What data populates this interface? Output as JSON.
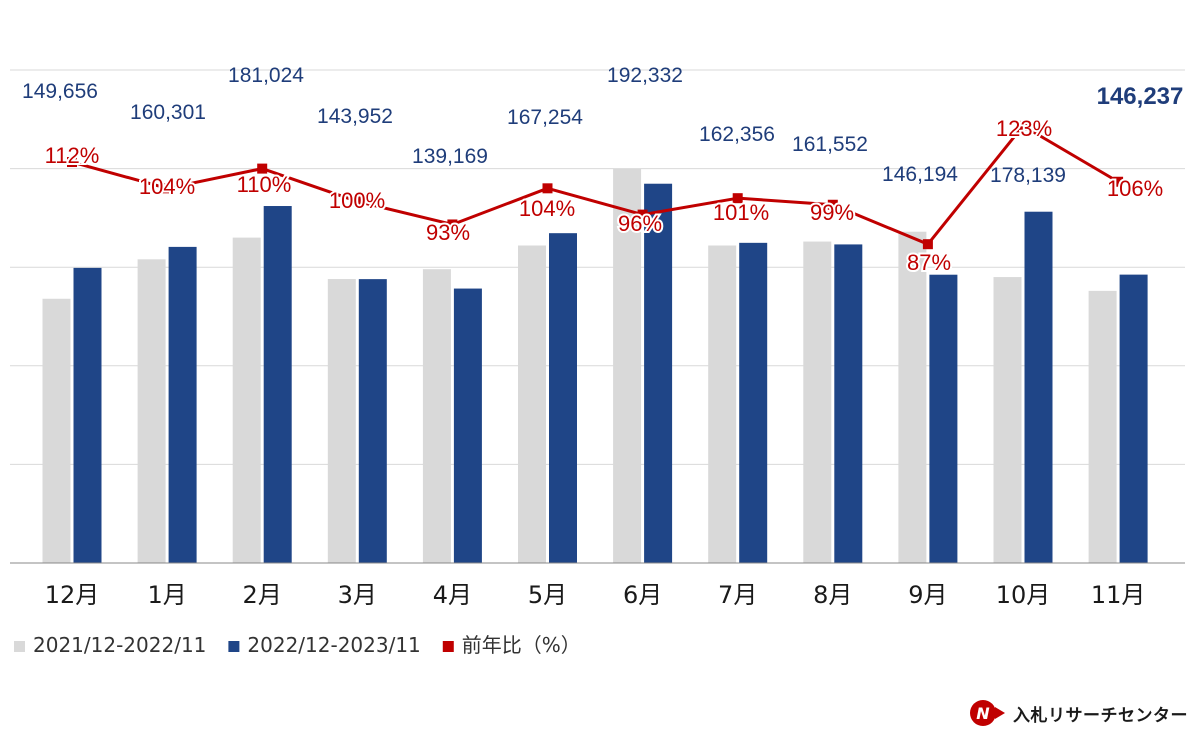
{
  "chart_data": {
    "type": "bar",
    "categories": [
      "12月",
      "1月",
      "2月",
      "3月",
      "4月",
      "5月",
      "6月",
      "7月",
      "8月",
      "9月",
      "10月",
      "11月"
    ],
    "series": [
      {
        "name": "2021/12-2022/11",
        "color": "#d9d9d9",
        "values": [
          134000,
          154000,
          165000,
          144000,
          149000,
          161000,
          200000,
          161000,
          163000,
          168000,
          145000,
          138000
        ]
      },
      {
        "name": "2022/12-2023/11",
        "color": "#1f4587",
        "values": [
          149656,
          160301,
          181024,
          143952,
          139169,
          167254,
          192332,
          162356,
          161552,
          146194,
          178139,
          146237
        ],
        "labels": [
          "149,656",
          "160,301",
          "181,024",
          "143,952",
          "139,169",
          "167,254",
          "192,332",
          "162,356",
          "161,552",
          "146,194",
          "178,139",
          "146,237"
        ]
      }
    ],
    "ratio_series": {
      "name": "前年比（%）",
      "color": "#c00000",
      "values": [
        112,
        104,
        110,
        100,
        93,
        104,
        96,
        101,
        99,
        87,
        123,
        106
      ],
      "labels": [
        "112%",
        "104%",
        "110%",
        "100%",
        "93%",
        "104%",
        "96%",
        "101%",
        "99%",
        "87%",
        "123%",
        "106%"
      ]
    },
    "ylim": [
      0,
      250000
    ],
    "ratio_ylim": [
      -10,
      140
    ],
    "grid": true,
    "legend_position": "bottom-left"
  },
  "brand": {
    "name": "入札リサーチセンター",
    "logo_letter": "N",
    "color": "#c00000"
  }
}
